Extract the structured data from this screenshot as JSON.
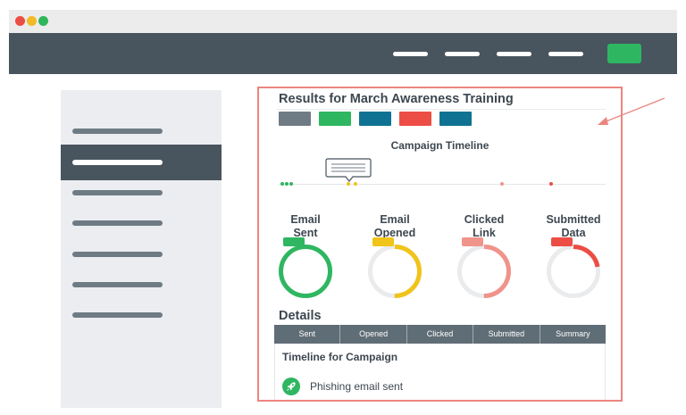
{
  "window": {
    "controls": [
      "close",
      "minimize",
      "maximize"
    ]
  },
  "colors": {
    "navbar": "#48545e",
    "accent_green": "#2fb661",
    "accent_red": "#ec4d45",
    "accent_blue": "#0f7293",
    "accent_yellow": "#f0c419",
    "accent_salmon": "#f0938b",
    "highlight_border": "#ec857e",
    "table_header": "#5f6d76"
  },
  "panel": {
    "title": "Results for March Awareness Training",
    "status_chips": [
      "#6f7b84",
      "#2fb661",
      "#0f7293",
      "#ec4d45",
      "#0f7293"
    ],
    "timeline": {
      "title": "Campaign Timeline"
    },
    "stats": [
      {
        "label": "Email\nSent",
        "color": "#2fb661",
        "fraction": 1.0
      },
      {
        "label": "Email\nOpened",
        "color": "#f0c419",
        "fraction": 0.5
      },
      {
        "label": "Clicked\nLink",
        "color": "#f0938b",
        "fraction": 0.5
      },
      {
        "label": "Submitted\nData",
        "color": "#ec4d45",
        "fraction": 0.22
      }
    ],
    "details": {
      "title": "Details",
      "columns": [
        "Sent",
        "Opened",
        "Clicked",
        "Submitted",
        "Summary"
      ],
      "timeline_title": "Timeline for Campaign",
      "events": [
        {
          "text": "Phishing email sent",
          "icon": "rocket-icon"
        }
      ]
    }
  }
}
